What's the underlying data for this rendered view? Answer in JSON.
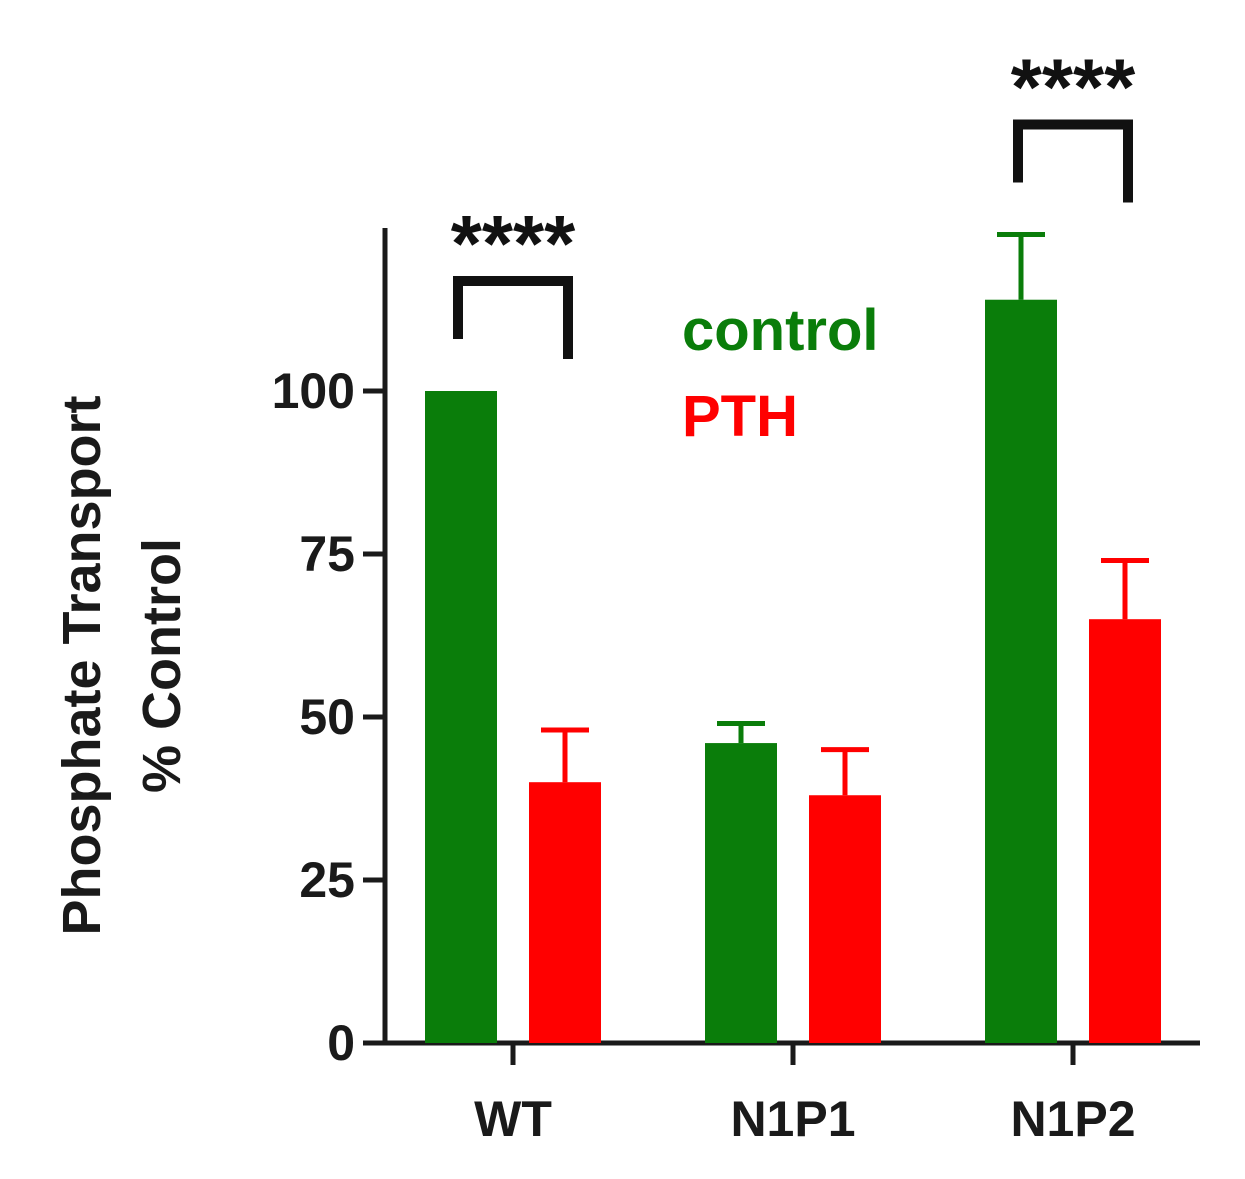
{
  "chart_data": {
    "type": "bar",
    "title": "",
    "xlabel": "",
    "ylabel_lines": [
      "Phosphate Transport",
      "% Control"
    ],
    "categories": [
      "WT",
      "N1P1",
      "N1P2"
    ],
    "ylim": [
      0,
      125
    ],
    "yticks": [
      0,
      25,
      50,
      75,
      100
    ],
    "series": [
      {
        "name": "control",
        "color": "#0a7d0a",
        "values": [
          100,
          46,
          114
        ],
        "errors": [
          0,
          3,
          10
        ]
      },
      {
        "name": "PTH",
        "color": "#ff0000",
        "values": [
          40,
          38,
          65
        ],
        "errors": [
          8,
          7,
          9
        ]
      }
    ],
    "legend_position": "top-center",
    "significance": [
      {
        "category": "WT",
        "label": "****"
      },
      {
        "category": "N1P2",
        "label": "****"
      }
    ],
    "grid": false
  }
}
